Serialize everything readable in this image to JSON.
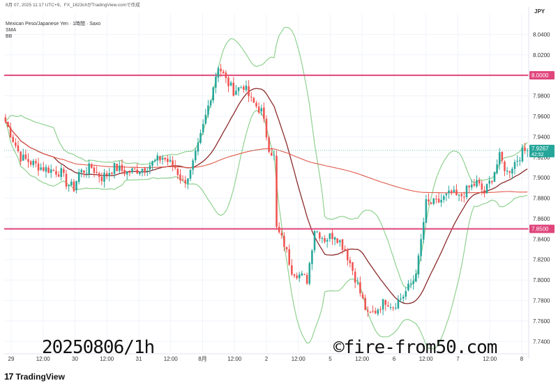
{
  "header": {
    "timestamp_line": "8月 07, 2025 11:17 UTC+9、FX_1623chがTradingView.comで作成",
    "symbol_line": "Mexican Peso/Japanese Yen · 1時間 · Saxo",
    "indicator_1": "SMA",
    "indicator_2": "BB"
  },
  "brand": {
    "name": "TradingView",
    "logo": "17"
  },
  "overlay": {
    "date_text": "20250806/1h",
    "copyright_text": "©fire-from50.com"
  },
  "colors": {
    "up": "#26a69a",
    "down": "#ef5350",
    "sma_fast": "#8b2a2a",
    "sma_slow": "#e0594a",
    "bb": "#8fd18f",
    "hline": "#e0457b",
    "price_tag": "#26a69a"
  },
  "chart_data": {
    "type": "candlestick",
    "currency": "JPY",
    "ylim": [
      7.73,
      8.06
    ],
    "y_ticks": [
      "8.0400",
      "8.0200",
      "8.0000",
      "7.9800",
      "7.9600",
      "7.9400",
      "7.9200",
      "7.9000",
      "7.8800",
      "7.8600",
      "7.8400",
      "7.8200",
      "7.8000",
      "7.7800",
      "7.7600",
      "7.7400"
    ],
    "x_ticks": [
      "29",
      "12:00",
      "30",
      "12:00",
      "31",
      "12:00",
      "8月",
      "12:00",
      "2",
      "12:00",
      "5",
      "12:00",
      "6",
      "12:00",
      "7",
      "12:00",
      "8"
    ],
    "horizontal_lines": [
      {
        "label": "8.0000",
        "value": 8.0
      },
      {
        "label": "7.8500",
        "value": 7.85
      }
    ],
    "last_price": {
      "value": "7.9267",
      "countdown": "42:52"
    },
    "close_path": [
      [
        0,
        7.955
      ],
      [
        6,
        7.92
      ],
      [
        14,
        7.91
      ],
      [
        22,
        7.905
      ],
      [
        24,
        7.895
      ],
      [
        27,
        7.89
      ],
      [
        29,
        7.905
      ],
      [
        34,
        7.91
      ],
      [
        38,
        7.9
      ],
      [
        43,
        7.91
      ],
      [
        48,
        7.905
      ],
      [
        55,
        7.91
      ],
      [
        62,
        7.92
      ],
      [
        67,
        7.91
      ],
      [
        70,
        7.895
      ],
      [
        73,
        7.905
      ],
      [
        76,
        7.93
      ],
      [
        79,
        7.96
      ],
      [
        82,
        7.99
      ],
      [
        84,
        8.01
      ],
      [
        87,
        7.995
      ],
      [
        90,
        7.985
      ],
      [
        94,
        7.99
      ],
      [
        97,
        7.975
      ],
      [
        101,
        7.965
      ],
      [
        104,
        7.93
      ],
      [
        106,
        7.92
      ],
      [
        107,
        7.85
      ],
      [
        110,
        7.835
      ],
      [
        113,
        7.81
      ],
      [
        116,
        7.805
      ],
      [
        119,
        7.8
      ],
      [
        122,
        7.85
      ],
      [
        126,
        7.84
      ],
      [
        130,
        7.845
      ],
      [
        134,
        7.83
      ],
      [
        137,
        7.81
      ],
      [
        141,
        7.78
      ],
      [
        143,
        7.765
      ],
      [
        146,
        7.77
      ],
      [
        150,
        7.78
      ],
      [
        153,
        7.775
      ],
      [
        157,
        7.785
      ],
      [
        161,
        7.8
      ],
      [
        163,
        7.82
      ],
      [
        166,
        7.875
      ],
      [
        170,
        7.875
      ],
      [
        173,
        7.88
      ],
      [
        176,
        7.885
      ],
      [
        179,
        7.88
      ],
      [
        183,
        7.89
      ],
      [
        186,
        7.895
      ],
      [
        189,
        7.885
      ],
      [
        192,
        7.9
      ],
      [
        195,
        7.92
      ],
      [
        198,
        7.905
      ],
      [
        201,
        7.915
      ],
      [
        204,
        7.925
      ],
      [
        206,
        7.927
      ]
    ]
  }
}
